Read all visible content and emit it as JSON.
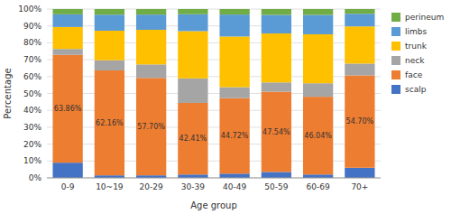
{
  "chart_data": {
    "type": "bar",
    "stacked": true,
    "xlabel": "Age group",
    "ylabel": "Percentage",
    "categories": [
      "0-9",
      "10~19",
      "20-29",
      "30-39",
      "40-49",
      "50-59",
      "60-69",
      "70+"
    ],
    "series": [
      {
        "name": "scalp",
        "color": "#4472C4",
        "values": [
          9.0,
          1.5,
          1.5,
          2.0,
          2.5,
          3.5,
          2.0,
          6.0
        ]
      },
      {
        "name": "face",
        "color": "#ED7D31",
        "values": [
          63.86,
          62.16,
          57.7,
          42.41,
          44.72,
          47.54,
          46.04,
          54.7
        ],
        "data_labels": true,
        "value_labels": [
          "63.86%",
          "62.16%",
          "57.70%",
          "42.41%",
          "44.72%",
          "47.54%",
          "46.04%",
          "54.70%"
        ]
      },
      {
        "name": "neck",
        "color": "#A5A5A5",
        "values": [
          3.5,
          6.0,
          8.0,
          14.5,
          6.5,
          5.5,
          8.0,
          7.0
        ]
      },
      {
        "name": "trunk",
        "color": "#FFC000",
        "values": [
          13.0,
          17.5,
          20.5,
          28.0,
          30.0,
          29.0,
          29.0,
          22.0
        ]
      },
      {
        "name": "limbs",
        "color": "#5B9BD5",
        "values": [
          7.5,
          9.5,
          9.0,
          10.0,
          13.0,
          11.0,
          11.5,
          7.5
        ]
      },
      {
        "name": "perineum",
        "color": "#70AD47",
        "values": [
          3.14,
          3.34,
          3.3,
          3.09,
          3.28,
          3.46,
          3.46,
          2.8
        ]
      }
    ],
    "ylim": [
      0,
      100
    ],
    "yticks": [
      {
        "value": 0,
        "label": "0%"
      },
      {
        "value": 10,
        "label": "10%"
      },
      {
        "value": 20,
        "label": "20%"
      },
      {
        "value": 30,
        "label": "30%"
      },
      {
        "value": 40,
        "label": "40%"
      },
      {
        "value": 50,
        "label": "50%"
      },
      {
        "value": 60,
        "label": "60%"
      },
      {
        "value": 70,
        "label": "70%"
      },
      {
        "value": 80,
        "label": "80%"
      },
      {
        "value": 90,
        "label": "90%"
      },
      {
        "value": 100,
        "label": "100%"
      }
    ],
    "grid": true,
    "legend": "right"
  }
}
